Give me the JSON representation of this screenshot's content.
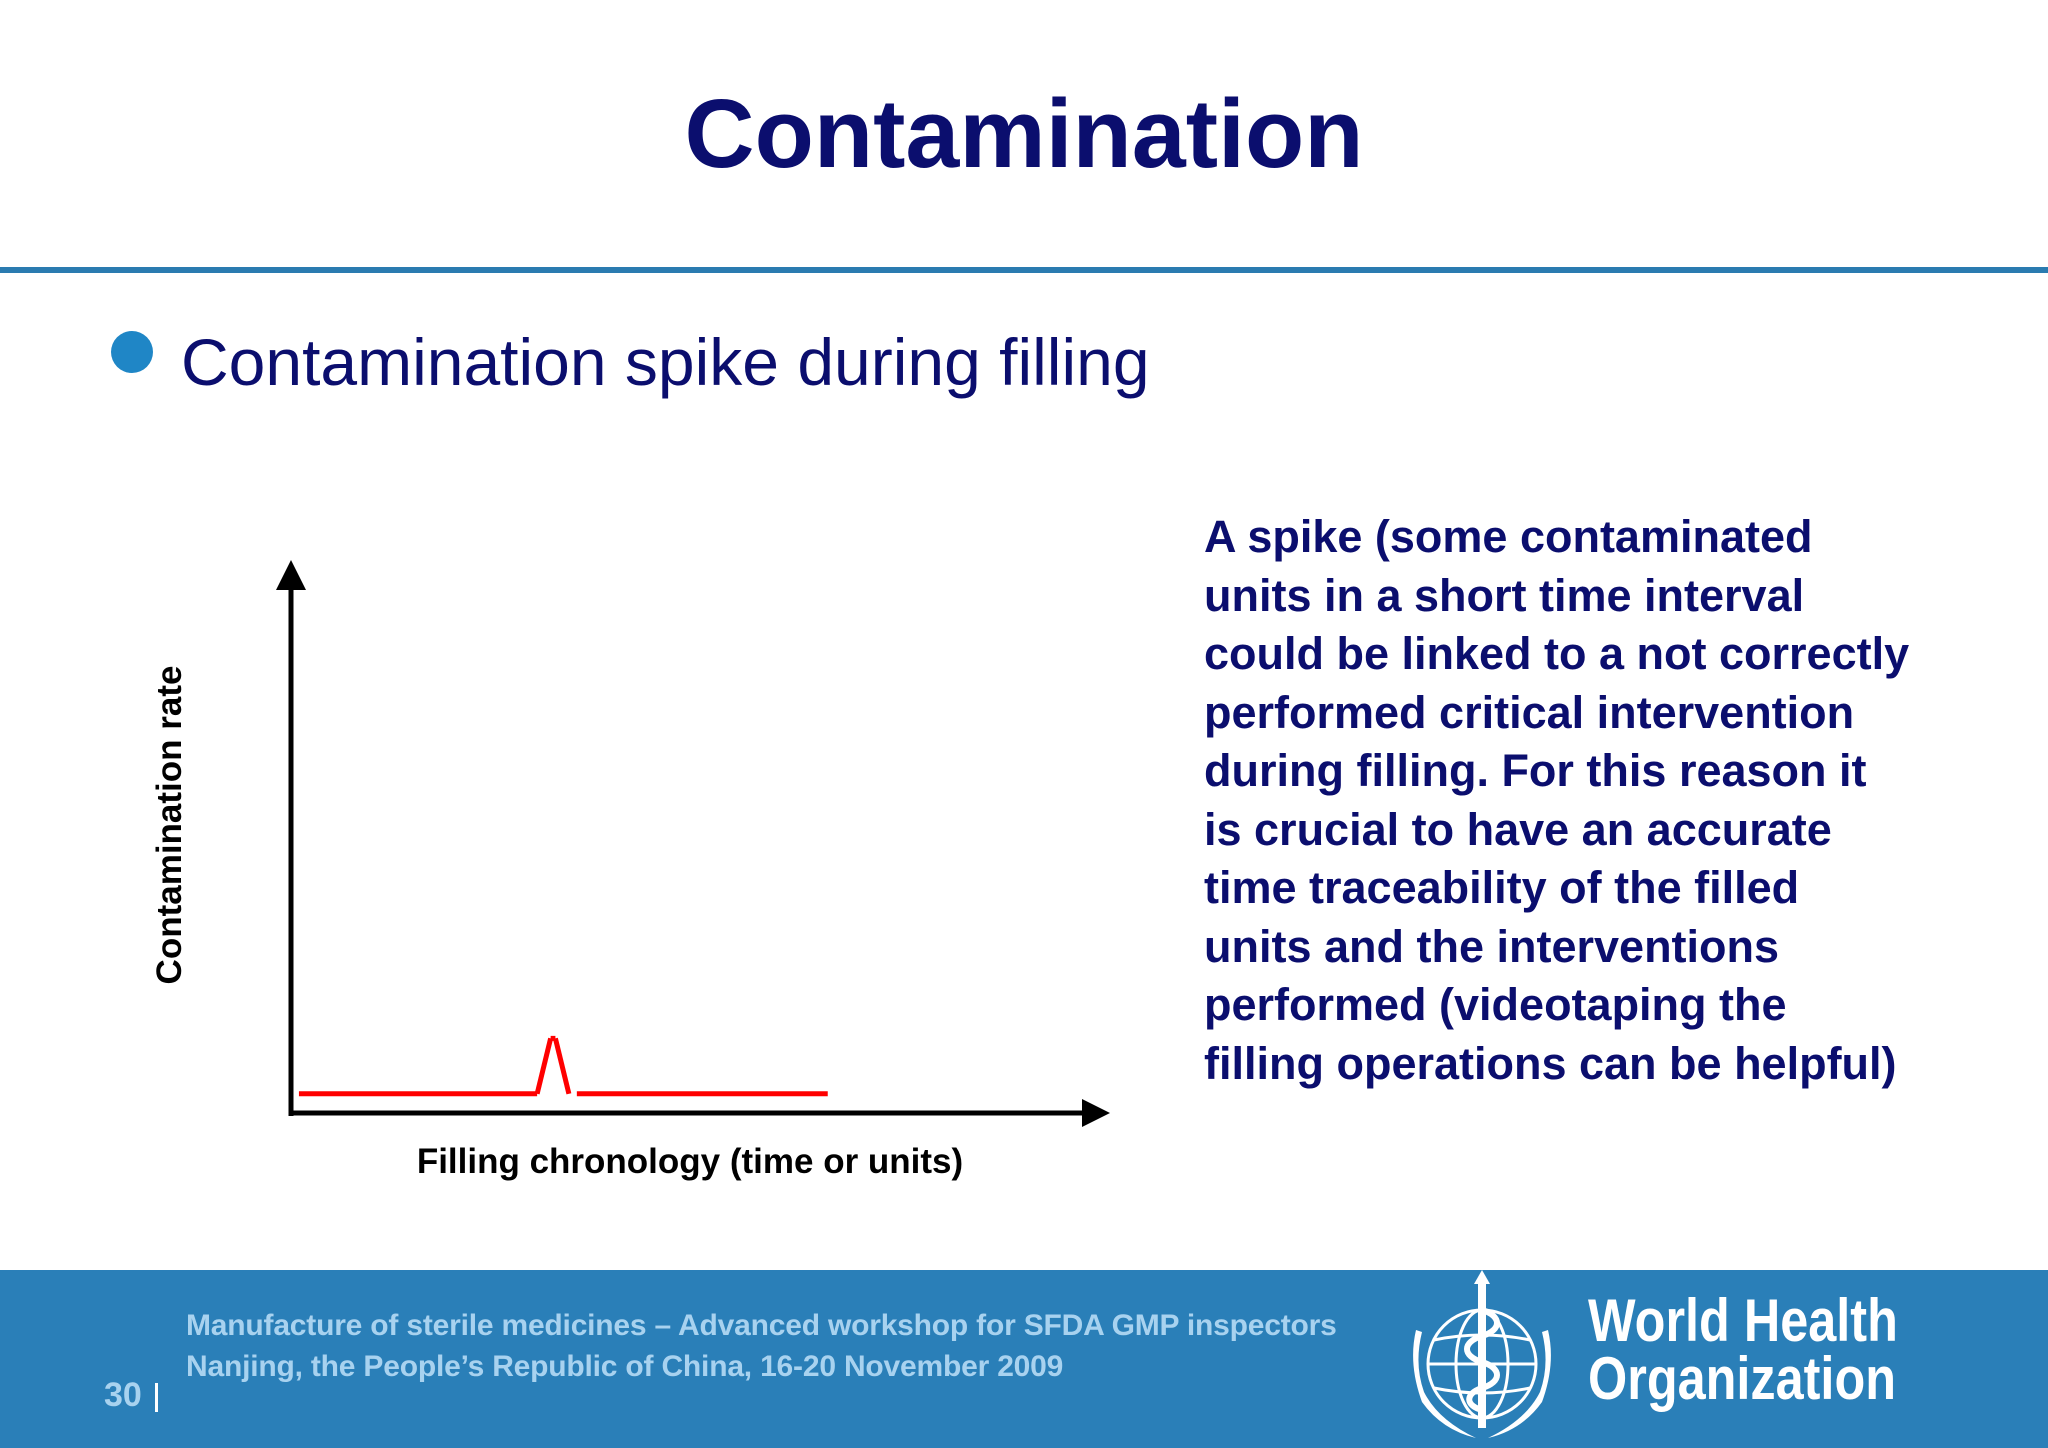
{
  "slide": {
    "title": "Contamination",
    "bullet": "Contamination spike during filling",
    "description_lines": [
      "A spike (some contaminated",
      "units in a short time interval",
      "could be linked to a not correctly",
      "performed critical intervention",
      "during filling. For this reason it",
      "is crucial to have an accurate",
      "time traceability of the filled",
      "units and the interventions",
      "performed (videotaping the",
      "filling operations can be helpful)"
    ]
  },
  "chart_data": {
    "type": "line",
    "title": "",
    "xlabel": "Filling chronology (time or units)",
    "ylabel": "Contamination rate",
    "x_ticks_labeled": false,
    "y_ticks_labeled": false,
    "grid": false,
    "series": [
      {
        "color": "#ff0000",
        "segments": [
          [
            [
              0.01,
              0.036
            ],
            [
              0.31,
              0.036
            ]
          ],
          [
            [
              0.31,
              0.036
            ],
            [
              0.327,
              0.14
            ]
          ],
          [
            [
              0.327,
              0.14
            ],
            [
              0.333,
              0.14
            ]
          ],
          [
            [
              0.333,
              0.14
            ],
            [
              0.35,
              0.036
            ]
          ],
          [
            [
              0.36,
              0.036
            ],
            [
              0.676,
              0.036
            ]
          ]
        ]
      }
    ],
    "xlim": [
      0,
      1
    ],
    "ylim": [
      0,
      1
    ]
  },
  "footer": {
    "line1": "Manufacture of sterile medicines – Advanced workshop for SFDA GMP inspectors",
    "line2": "Nanjing, the People’s Republic of China, 16-20 November 2009",
    "page_number": "30",
    "organization_line1": "World Health",
    "organization_line2": "Organization"
  },
  "colors": {
    "title": "#0b0e6e",
    "accent_rule": "#2a7bb0",
    "bullet": "#1f86c6",
    "footer_bg": "#2a7fb8",
    "footer_text": "#a8d2ef",
    "series": "#ff0000"
  },
  "icons": {
    "logo": "who-emblem-icon"
  }
}
